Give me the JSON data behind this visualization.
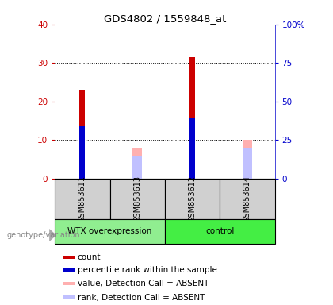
{
  "title": "GDS4802 / 1559848_at",
  "samples": [
    "GSM853611",
    "GSM853613",
    "GSM853612",
    "GSM853614"
  ],
  "group_names": [
    "WTX overexpression",
    "control"
  ],
  "count_values": [
    23.0,
    0,
    31.5,
    0
  ],
  "percentile_values": [
    13.5,
    0,
    15.5,
    0
  ],
  "absent_value_values": [
    0,
    8.0,
    0,
    10.0
  ],
  "absent_rank_values": [
    0,
    6.0,
    0,
    8.0
  ],
  "ylim_left": [
    0,
    40
  ],
  "ylim_right": [
    0,
    100
  ],
  "yticks_left": [
    0,
    10,
    20,
    30,
    40
  ],
  "yticks_right": [
    0,
    25,
    50,
    75,
    100
  ],
  "ytick_labels_right": [
    "0",
    "25",
    "50",
    "75",
    "100%"
  ],
  "left_tick_color": "#cc0000",
  "right_tick_color": "#0000cc",
  "count_color": "#cc0000",
  "percentile_color": "#0000cc",
  "absent_value_color": "#ffb0b0",
  "absent_rank_color": "#c0c0ff",
  "legend_items": [
    {
      "label": "count",
      "color": "#cc0000"
    },
    {
      "label": "percentile rank within the sample",
      "color": "#0000cc"
    },
    {
      "label": "value, Detection Call = ABSENT",
      "color": "#ffb0b0"
    },
    {
      "label": "rank, Detection Call = ABSENT",
      "color": "#c0c0ff"
    }
  ],
  "bg_color": "#ffffff",
  "label_area_color": "#d0d0d0",
  "genotype_label": "genotype/variation",
  "group_color1": "#90ee90",
  "group_color2": "#44ee44",
  "fig_width": 4.2,
  "fig_height": 3.84,
  "count_bar_width": 0.1,
  "absent_bar_width": 0.18
}
